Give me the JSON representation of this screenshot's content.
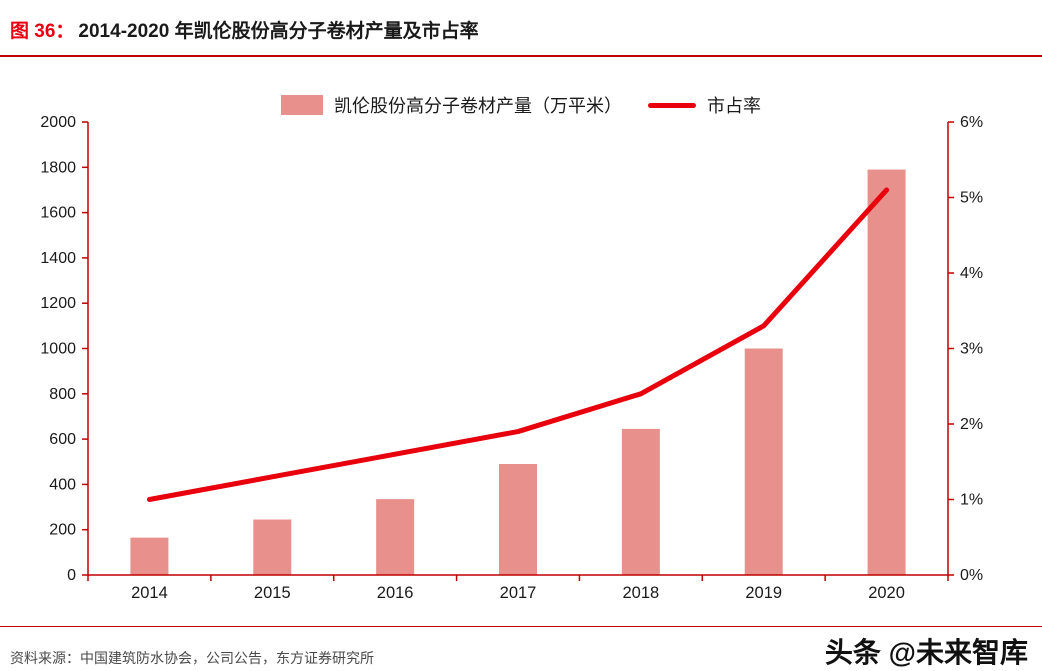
{
  "title": {
    "prefix": "图  36：",
    "text": "2014-2020 年凯伦股份高分子卷材产量及市占率"
  },
  "legend": {
    "bar_label": "凯伦股份高分子卷材产量（万平米）",
    "line_label": "市占率"
  },
  "footer": {
    "source": "资料来源：中国建筑防水协会，公司公告，东方证券研究所"
  },
  "watermark": "头条 @未来智库",
  "colors": {
    "bar": "#e8918c",
    "line": "#e8000d",
    "axis": "#c00000",
    "title_accent": "#e60012",
    "label_text": "#1a1a1a"
  },
  "chart_data": {
    "type": "bar",
    "combo": "bar+line",
    "title": "2014-2020 年凯伦股份高分子卷材产量及市占率",
    "categories": [
      "2014",
      "2015",
      "2016",
      "2017",
      "2018",
      "2019",
      "2020"
    ],
    "series": [
      {
        "name": "凯伦股份高分子卷材产量（万平米）",
        "type": "bar",
        "axis": "left",
        "values": [
          165,
          245,
          335,
          490,
          645,
          1000,
          1790
        ]
      },
      {
        "name": "市占率",
        "type": "line",
        "axis": "right",
        "unit": "%",
        "values": [
          1.0,
          1.3,
          1.6,
          1.9,
          2.4,
          3.3,
          5.1
        ]
      }
    ],
    "left_axis": {
      "min": 0,
      "max": 2000,
      "step": 200
    },
    "right_axis": {
      "min": 0,
      "max": 6,
      "step": 1,
      "suffix": "%"
    },
    "legend_position": "top",
    "grid": false
  }
}
